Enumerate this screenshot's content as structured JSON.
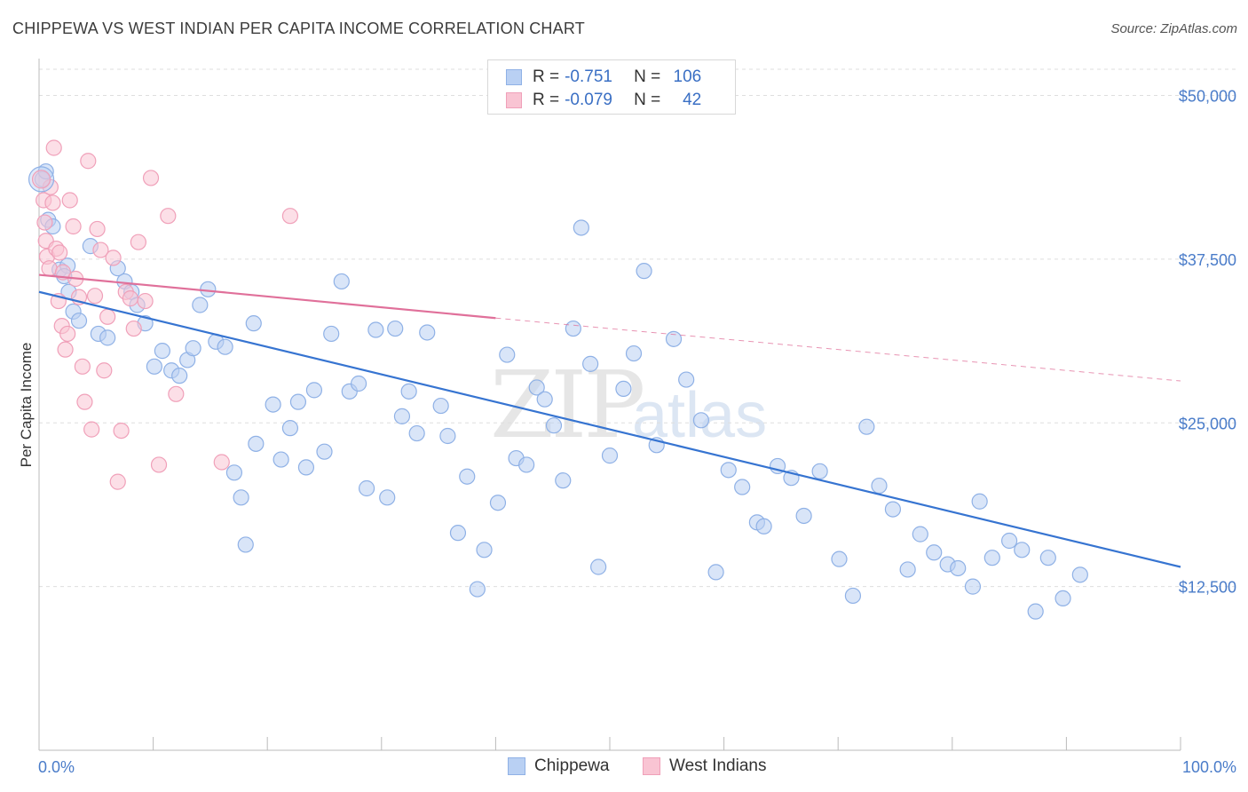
{
  "header": {
    "title": "CHIPPEWA VS WEST INDIAN PER CAPITA INCOME CORRELATION CHART",
    "source": "Source: ZipAtlas.com"
  },
  "legend_top": [
    {
      "r_label": "R =",
      "r_value": "-0.751",
      "n_label": "N =",
      "n_value": "106"
    },
    {
      "r_label": "R =",
      "r_value": "-0.079",
      "n_label": "N =",
      "n_value": "42"
    }
  ],
  "legend_bottom": [
    "Chippewa",
    "West Indians"
  ],
  "watermark": {
    "zip": "ZIP",
    "atlas": "atlas"
  },
  "colors": {
    "chippewa_fill": "#b9d0f3",
    "chippewa_stroke": "#8fb1e6",
    "chippewa_line": "#3674d1",
    "westindian_fill": "#f9c4d3",
    "westindian_stroke": "#f0a0b9",
    "westindian_line": "#e0709a",
    "tick_text": "#4a7cc9",
    "grid": "#dedede"
  },
  "chart_data": {
    "type": "scatter",
    "title": "CHIPPEWA VS WEST INDIAN PER CAPITA INCOME CORRELATION CHART",
    "xlabel": "",
    "ylabel": "Per Capita Income",
    "xlim": [
      0,
      100
    ],
    "ylim": [
      0,
      52000
    ],
    "x_tick_labels": [
      "0.0%",
      "100.0%"
    ],
    "y_ticks": [
      12500,
      25000,
      37500,
      50000
    ],
    "y_tick_labels": [
      "$12,500",
      "$25,000",
      "$37,500",
      "$50,000"
    ],
    "grid": true,
    "series": [
      {
        "name": "Chippewa",
        "r": -0.751,
        "n": 106,
        "trend": {
          "x": [
            0,
            100
          ],
          "y": [
            35000,
            14000
          ]
        },
        "points": [
          [
            0.3,
            43600
          ],
          [
            0.6,
            44200
          ],
          [
            0.8,
            40500
          ],
          [
            1.2,
            40000
          ],
          [
            1.8,
            36700
          ],
          [
            2.5,
            37000
          ],
          [
            2.2,
            36200
          ],
          [
            2.6,
            35000
          ],
          [
            3.0,
            33500
          ],
          [
            3.5,
            32800
          ],
          [
            4.5,
            38500
          ],
          [
            5.2,
            31800
          ],
          [
            6.0,
            31500
          ],
          [
            6.9,
            36800
          ],
          [
            7.5,
            35800
          ],
          [
            8.1,
            35000
          ],
          [
            8.6,
            34000
          ],
          [
            9.3,
            32600
          ],
          [
            10.1,
            29300
          ],
          [
            10.8,
            30500
          ],
          [
            11.6,
            29000
          ],
          [
            12.3,
            28600
          ],
          [
            13.0,
            29800
          ],
          [
            13.5,
            30700
          ],
          [
            14.1,
            34000
          ],
          [
            14.8,
            35200
          ],
          [
            15.5,
            31200
          ],
          [
            16.3,
            30800
          ],
          [
            17.1,
            21200
          ],
          [
            17.7,
            19300
          ],
          [
            18.1,
            15700
          ],
          [
            18.8,
            32600
          ],
          [
            19.0,
            23400
          ],
          [
            20.5,
            26400
          ],
          [
            21.2,
            22200
          ],
          [
            22.0,
            24600
          ],
          [
            22.7,
            26600
          ],
          [
            23.4,
            21600
          ],
          [
            24.1,
            27500
          ],
          [
            25.0,
            22800
          ],
          [
            25.6,
            31800
          ],
          [
            26.5,
            35800
          ],
          [
            27.2,
            27400
          ],
          [
            28.0,
            28000
          ],
          [
            28.7,
            20000
          ],
          [
            29.5,
            32100
          ],
          [
            30.5,
            19300
          ],
          [
            31.2,
            32200
          ],
          [
            31.8,
            25500
          ],
          [
            32.4,
            27400
          ],
          [
            33.1,
            24200
          ],
          [
            34.0,
            31900
          ],
          [
            35.2,
            26300
          ],
          [
            35.8,
            24000
          ],
          [
            36.7,
            16600
          ],
          [
            37.5,
            20900
          ],
          [
            38.4,
            12300
          ],
          [
            39.0,
            15300
          ],
          [
            40.2,
            18900
          ],
          [
            41.0,
            30200
          ],
          [
            41.8,
            22300
          ],
          [
            42.7,
            21800
          ],
          [
            43.6,
            27700
          ],
          [
            44.3,
            26800
          ],
          [
            45.1,
            24800
          ],
          [
            45.9,
            20600
          ],
          [
            46.8,
            32200
          ],
          [
            47.5,
            39900
          ],
          [
            48.3,
            29500
          ],
          [
            49.0,
            14000
          ],
          [
            50.0,
            22500
          ],
          [
            51.2,
            27600
          ],
          [
            52.1,
            30300
          ],
          [
            53.0,
            36600
          ],
          [
            54.1,
            23300
          ],
          [
            55.6,
            31400
          ],
          [
            56.7,
            28300
          ],
          [
            58.0,
            25200
          ],
          [
            59.3,
            13600
          ],
          [
            60.4,
            21400
          ],
          [
            61.6,
            20100
          ],
          [
            62.9,
            17400
          ],
          [
            63.5,
            17100
          ],
          [
            64.7,
            21700
          ],
          [
            65.9,
            20800
          ],
          [
            67.0,
            17900
          ],
          [
            68.4,
            21300
          ],
          [
            70.1,
            14600
          ],
          [
            71.3,
            11800
          ],
          [
            72.5,
            24700
          ],
          [
            73.6,
            20200
          ],
          [
            74.8,
            18400
          ],
          [
            76.1,
            13800
          ],
          [
            77.2,
            16500
          ],
          [
            78.4,
            15100
          ],
          [
            79.6,
            14200
          ],
          [
            80.5,
            13900
          ],
          [
            81.8,
            12500
          ],
          [
            82.4,
            19000
          ],
          [
            83.5,
            14700
          ],
          [
            85.0,
            16000
          ],
          [
            86.1,
            15300
          ],
          [
            87.3,
            10600
          ],
          [
            88.4,
            14700
          ],
          [
            89.7,
            11600
          ],
          [
            91.2,
            13400
          ]
        ]
      },
      {
        "name": "West Indians",
        "r": -0.079,
        "n": 42,
        "trend": {
          "x": [
            0,
            40
          ],
          "y": [
            36300,
            33000
          ]
        },
        "trend_extension": {
          "x": [
            40,
            100
          ],
          "y": [
            33000,
            28200
          ]
        },
        "points": [
          [
            0.4,
            42000
          ],
          [
            0.5,
            40300
          ],
          [
            0.6,
            38900
          ],
          [
            0.7,
            37700
          ],
          [
            0.9,
            36800
          ],
          [
            1.0,
            43000
          ],
          [
            1.2,
            41800
          ],
          [
            1.3,
            46000
          ],
          [
            1.5,
            38300
          ],
          [
            1.7,
            34300
          ],
          [
            1.8,
            38000
          ],
          [
            2.0,
            32400
          ],
          [
            2.1,
            36500
          ],
          [
            2.3,
            30600
          ],
          [
            2.5,
            31800
          ],
          [
            2.7,
            42000
          ],
          [
            3.0,
            40000
          ],
          [
            3.2,
            36000
          ],
          [
            3.5,
            34600
          ],
          [
            3.8,
            29300
          ],
          [
            4.0,
            26600
          ],
          [
            4.3,
            45000
          ],
          [
            4.6,
            24500
          ],
          [
            4.9,
            34700
          ],
          [
            5.1,
            39800
          ],
          [
            5.4,
            38200
          ],
          [
            5.7,
            29000
          ],
          [
            6.0,
            33100
          ],
          [
            6.5,
            37600
          ],
          [
            6.9,
            20500
          ],
          [
            7.2,
            24400
          ],
          [
            7.6,
            35000
          ],
          [
            8.0,
            34500
          ],
          [
            8.3,
            32200
          ],
          [
            8.7,
            38800
          ],
          [
            9.3,
            34300
          ],
          [
            9.8,
            43700
          ],
          [
            10.5,
            21800
          ],
          [
            11.3,
            40800
          ],
          [
            12.0,
            27200
          ],
          [
            16.0,
            22000
          ],
          [
            22.0,
            40800
          ]
        ]
      }
    ]
  }
}
